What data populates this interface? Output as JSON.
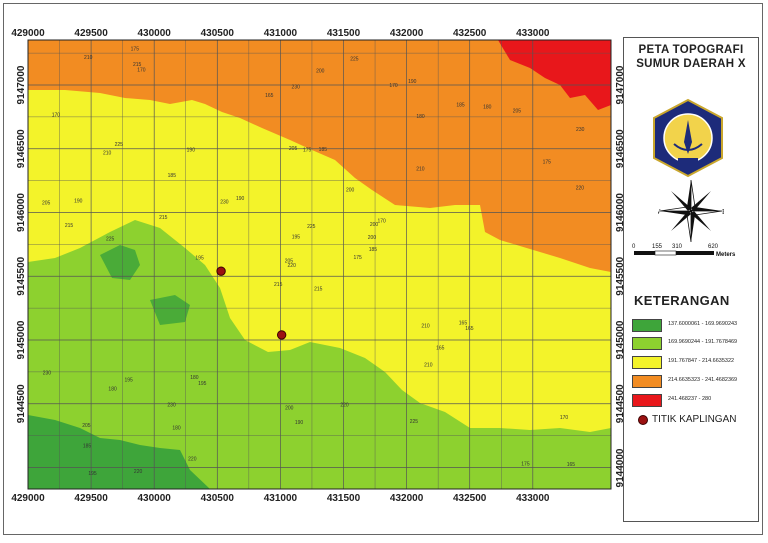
{
  "map": {
    "title_line1": "PETA TOPOGRAFI",
    "title_line2": "SUMUR DAERAH X",
    "x_ticks": [
      "429000",
      "429500",
      "430000",
      "430500",
      "431000",
      "431500",
      "432000",
      "432500",
      "433000"
    ],
    "y_ticks": [
      "9147000",
      "9146500",
      "9146000",
      "9145500",
      "9145000",
      "9144500",
      "9144000"
    ],
    "contour_labels": [
      "215",
      "210",
      "220",
      "205",
      "200",
      "195",
      "190",
      "185",
      "180",
      "175",
      "170",
      "165",
      "225",
      "230"
    ]
  },
  "compass": {
    "west": "W",
    "east": "E"
  },
  "scale_bar": {
    "labels": [
      "0",
      "155",
      "310",
      "620"
    ],
    "unit": "Meters"
  },
  "legend": {
    "title": "KETERANGAN",
    "items": [
      {
        "color": "#3ea53a",
        "label": "137.6000061 - 169.9690243"
      },
      {
        "color": "#8dd12f",
        "label": "169.9690244 - 191.7678469"
      },
      {
        "color": "#f3f32a",
        "label": "191.767847 - 214.6635322"
      },
      {
        "color": "#f28c22",
        "label": "214.6635323 - 241.4682369"
      },
      {
        "color": "#e8171b",
        "label": "241.468237 - 280"
      }
    ],
    "point_label": "TITIK KAPLINGAN"
  },
  "points": [
    {
      "id": "titik-1",
      "x": 430530,
      "y": 9145540
    },
    {
      "id": "titik-2",
      "x": 431010,
      "y": 9145040
    }
  ],
  "colors": {
    "green_dark": "#3ea53a",
    "green_light": "#8dd12f",
    "yellow": "#f3f32a",
    "orange": "#f28c22",
    "red": "#e8171b",
    "grid": "#555555",
    "point": "#9b1111"
  }
}
